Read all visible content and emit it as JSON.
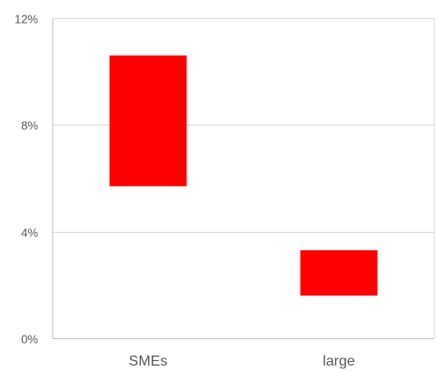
{
  "chart_data": {
    "type": "bar",
    "subtype": "floating-range",
    "categories": [
      "SMEs",
      "large"
    ],
    "ranges": [
      {
        "category": "SMEs",
        "low": 5.7,
        "high": 10.6
      },
      {
        "category": "large",
        "low": 1.6,
        "high": 3.3
      }
    ],
    "ylim": [
      0,
      12
    ],
    "yticks": [
      0,
      4,
      8,
      12
    ],
    "ytick_labels": [
      "0%",
      "4%",
      "8%",
      "12%"
    ],
    "title": "",
    "xlabel": "",
    "ylabel": "",
    "grid": true,
    "legend": "none",
    "bar_color": "#ff0000",
    "grid_color": "#d9d9d9",
    "axis_color": "#bfbfbf"
  }
}
